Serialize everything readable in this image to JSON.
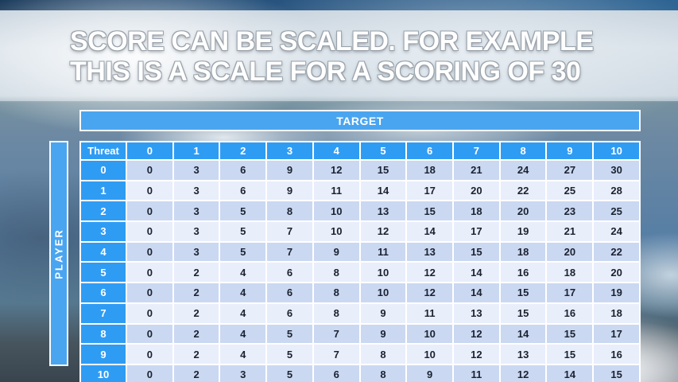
{
  "slide": {
    "title_line1": "SCORE CAN BE SCALED. FOR EXAMPLE",
    "title_line2": "THIS IS A SCALE FOR A SCORING OF 30"
  },
  "matrix": {
    "target_label": "TARGET",
    "player_label": "PLAYER",
    "threat_label": "Threat",
    "target_values": [
      "0",
      "1",
      "2",
      "3",
      "4",
      "5",
      "6",
      "7",
      "8",
      "9",
      "10"
    ],
    "rows": [
      {
        "threat": "0",
        "values": [
          "0",
          "3",
          "6",
          "9",
          "12",
          "15",
          "18",
          "21",
          "24",
          "27",
          "30"
        ]
      },
      {
        "threat": "1",
        "values": [
          "0",
          "3",
          "6",
          "9",
          "11",
          "14",
          "17",
          "20",
          "22",
          "25",
          "28"
        ]
      },
      {
        "threat": "2",
        "values": [
          "0",
          "3",
          "5",
          "8",
          "10",
          "13",
          "15",
          "18",
          "20",
          "23",
          "25"
        ]
      },
      {
        "threat": "3",
        "values": [
          "0",
          "3",
          "5",
          "7",
          "10",
          "12",
          "14",
          "17",
          "19",
          "21",
          "24"
        ]
      },
      {
        "threat": "4",
        "values": [
          "0",
          "3",
          "5",
          "7",
          "9",
          "11",
          "13",
          "15",
          "18",
          "20",
          "22"
        ]
      },
      {
        "threat": "5",
        "values": [
          "0",
          "2",
          "4",
          "6",
          "8",
          "10",
          "12",
          "14",
          "16",
          "18",
          "20"
        ]
      },
      {
        "threat": "6",
        "values": [
          "0",
          "2",
          "4",
          "6",
          "8",
          "10",
          "12",
          "14",
          "15",
          "17",
          "19"
        ]
      },
      {
        "threat": "7",
        "values": [
          "0",
          "2",
          "4",
          "6",
          "8",
          "9",
          "11",
          "13",
          "15",
          "16",
          "18"
        ]
      },
      {
        "threat": "8",
        "values": [
          "0",
          "2",
          "4",
          "5",
          "7",
          "9",
          "10",
          "12",
          "14",
          "15",
          "17"
        ]
      },
      {
        "threat": "9",
        "values": [
          "0",
          "2",
          "4",
          "5",
          "7",
          "8",
          "10",
          "12",
          "13",
          "15",
          "16"
        ]
      },
      {
        "threat": "10",
        "values": [
          "0",
          "2",
          "3",
          "5",
          "6",
          "8",
          "9",
          "11",
          "12",
          "14",
          "15"
        ]
      }
    ]
  },
  "colors": {
    "header_blue": "#2f9cf4",
    "bar_blue": "#4aa5f0",
    "row_light": "#e9eefb",
    "row_dark": "#cbd8f2",
    "cell_text": "#1a2230",
    "gridline": "#ffffff",
    "title_text": "#ffffff"
  }
}
